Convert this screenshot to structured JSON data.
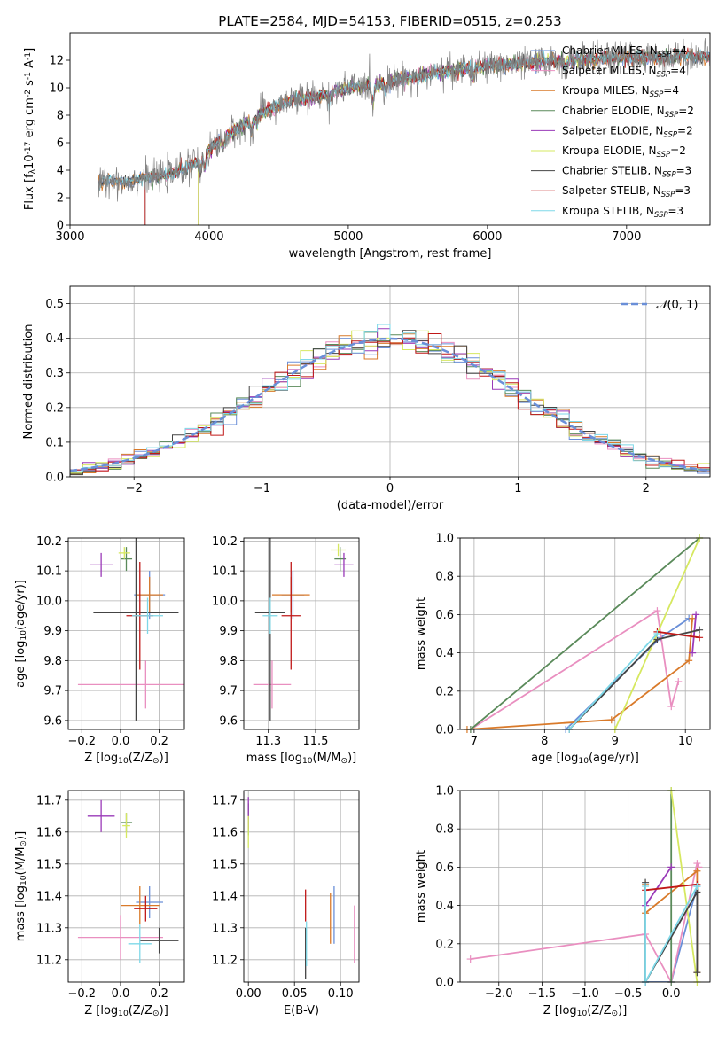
{
  "figure": {
    "title": "PLATE=2584, MJD=54153, FIBERID=0515, z=0.253"
  },
  "models": [
    {
      "name": "Chabrier MILES, N$_{SSP}$=4",
      "label_main": "Chabrier MILES, N",
      "label_sub": "SSP",
      "label_tail": "=4",
      "color": "#6a8fd8"
    },
    {
      "name": "Salpeter MILES, N$_{SSP}$=4",
      "label_main": "Salpeter MILES, N",
      "label_sub": "SSP",
      "label_tail": "=4",
      "color": "#e98fc0"
    },
    {
      "name": "Kroupa MILES, N$_{SSP}$=4",
      "label_main": "Kroupa MILES, N",
      "label_sub": "SSP",
      "label_tail": "=4",
      "color": "#d97a2a"
    },
    {
      "name": "Chabrier ELODIE, N$_{SSP}$=2",
      "label_main": "Chabrier ELODIE, N",
      "label_sub": "SSP",
      "label_tail": "=2",
      "color": "#5a8a5a"
    },
    {
      "name": "Salpeter ELODIE, N$_{SSP}$=2",
      "label_main": "Salpeter ELODIE, N",
      "label_sub": "SSP",
      "label_tail": "=2",
      "color": "#9a3ab8"
    },
    {
      "name": "Kroupa ELODIE, N$_{SSP}$=2",
      "label_main": "Kroupa ELODIE, N",
      "label_sub": "SSP",
      "label_tail": "=2",
      "color": "#d6e860"
    },
    {
      "name": "Chabrier STELIB, N$_{SSP}$=3",
      "label_main": "Chabrier STELIB, N",
      "label_sub": "SSP",
      "label_tail": "=3",
      "color": "#444444"
    },
    {
      "name": "Salpeter STELIB, N$_{SSP}$=3",
      "label_main": "Salpeter STELIB, N",
      "label_sub": "SSP",
      "label_tail": "=3",
      "color": "#c01818"
    },
    {
      "name": "Kroupa STELIB, N$_{SSP}$=3",
      "label_main": "Kroupa STELIB, N",
      "label_sub": "SSP",
      "label_tail": "=3",
      "color": "#7ed8e8"
    }
  ],
  "chart_data": [
    {
      "id": "spectrum",
      "type": "line",
      "xlabel": "wavelength [Angstrom, rest frame]",
      "ylabel": "Flux [f$_\\lambda$10$^{-17}$ erg cm$^{-2}$ s$^{-1}$ A$^{-1}$]",
      "xlim": [
        3000,
        7600
      ],
      "ylim": [
        0,
        14
      ],
      "xticks": [
        3000,
        4000,
        5000,
        6000,
        7000
      ],
      "yticks": [
        0,
        2,
        4,
        6,
        8,
        10,
        12
      ],
      "data_color": "#808080",
      "continuum_x": [
        3200,
        3300,
        3400,
        3500,
        3700,
        3900,
        4000,
        4200,
        4400,
        4600,
        4800,
        5000,
        5200,
        5400,
        5600,
        5800,
        6000,
        6200,
        6400,
        6600,
        6800,
        7000,
        7200,
        7400,
        7600
      ],
      "continuum_y": [
        3.0,
        3.3,
        3.1,
        3.4,
        3.6,
        4.5,
        5.5,
        7.0,
        8.3,
        9.1,
        9.4,
        10.0,
        10.2,
        10.7,
        11.0,
        11.3,
        11.6,
        11.7,
        11.9,
        12.0,
        12.1,
        12.2,
        12.2,
        12.3,
        12.3
      ],
      "legend": "upper right",
      "grid": false
    },
    {
      "id": "residuals",
      "type": "histogram",
      "xlabel": "(data-model)/error",
      "ylabel": "Normed distribution",
      "xlim": [
        -2.5,
        2.5
      ],
      "ylim": [
        0,
        0.55
      ],
      "xticks": [
        -2,
        -1,
        0,
        1,
        2
      ],
      "yticks": [
        0.0,
        0.1,
        0.2,
        0.3,
        0.4,
        0.5
      ],
      "bin_width": 0.1,
      "gaussian": {
        "label": "N(0,1)",
        "label_glyph": "𝒩",
        "label_tail": "(0, 1)",
        "color": "#6a8fd8",
        "mu": 0,
        "sigma": 1
      },
      "legend": "upper right",
      "grid": true
    },
    {
      "id": "age_vs_Z",
      "type": "scatter-errorbar",
      "xlabel": "Z [log$_{10}$(Z/Z$_\\odot$)]",
      "ylabel": "age  [log$_{10}$(age/yr)]",
      "xlim": [
        -0.27,
        0.33
      ],
      "ylim": [
        9.57,
        10.21
      ],
      "xticks": [
        -0.2,
        0.0,
        0.2
      ],
      "yticks": [
        9.6,
        9.7,
        9.8,
        9.9,
        10.0,
        10.1,
        10.2
      ],
      "points": [
        {
          "model": 0,
          "x": 0.15,
          "y": 10.02,
          "xerr": 0.08,
          "yerr": 0.08
        },
        {
          "model": 1,
          "x": 0.13,
          "y": 9.72,
          "xerr": 0.35,
          "yerr": 0.08
        },
        {
          "model": 2,
          "x": 0.15,
          "y": 10.02,
          "xerr": 0.07,
          "yerr": 0.06
        },
        {
          "model": 3,
          "x": 0.03,
          "y": 10.14,
          "xerr": 0.03,
          "yerr": 0.04
        },
        {
          "model": 4,
          "x": -0.1,
          "y": 10.12,
          "xerr": 0.06,
          "yerr": 0.04
        },
        {
          "model": 5,
          "x": 0.02,
          "y": 10.16,
          "xerr": 0.03,
          "yerr": 0.02
        },
        {
          "model": 6,
          "x": 0.08,
          "y": 9.96,
          "xerr": 0.22,
          "yerr": 0.36
        },
        {
          "model": 7,
          "x": 0.1,
          "y": 9.95,
          "xerr": 0.07,
          "yerr": 0.18
        },
        {
          "model": 8,
          "x": 0.14,
          "y": 9.95,
          "xerr": 0.08,
          "yerr": 0.06
        }
      ],
      "grid": true
    },
    {
      "id": "age_vs_mass",
      "type": "scatter-errorbar",
      "xlabel": "mass [log$_{10}$(M/M$_\\odot$)]",
      "ylabel": "",
      "xlim": [
        11.12,
        11.73
      ],
      "ylim": [
        9.57,
        10.21
      ],
      "xticks": [
        11.25,
        11.5
      ],
      "yticks": [
        9.6,
        9.7,
        9.8,
        9.9,
        10.0,
        10.1,
        10.2
      ],
      "points": [
        {
          "model": 0,
          "x": 11.38,
          "y": 10.02,
          "xerr": 0.06,
          "yerr": 0.08
        },
        {
          "model": 1,
          "x": 11.27,
          "y": 9.72,
          "xerr": 0.1,
          "yerr": 0.08
        },
        {
          "model": 2,
          "x": 11.37,
          "y": 10.02,
          "xerr": 0.1,
          "yerr": 0.06
        },
        {
          "model": 3,
          "x": 11.63,
          "y": 10.14,
          "xerr": 0.03,
          "yerr": 0.04
        },
        {
          "model": 4,
          "x": 11.65,
          "y": 10.12,
          "xerr": 0.05,
          "yerr": 0.04
        },
        {
          "model": 5,
          "x": 11.62,
          "y": 10.17,
          "xerr": 0.04,
          "yerr": 0.02
        },
        {
          "model": 6,
          "x": 11.26,
          "y": 9.96,
          "xerr": 0.08,
          "yerr": 0.36
        },
        {
          "model": 7,
          "x": 11.37,
          "y": 9.95,
          "xerr": 0.05,
          "yerr": 0.18
        },
        {
          "model": 8,
          "x": 11.26,
          "y": 9.95,
          "xerr": 0.04,
          "yerr": 0.06
        }
      ],
      "grid": true
    },
    {
      "id": "massweight_vs_age",
      "type": "line",
      "xlabel": "age  [log$_{10}$(age/yr)]",
      "ylabel": "mass weight",
      "xlim": [
        6.8,
        10.35
      ],
      "ylim": [
        0,
        1
      ],
      "xticks": [
        7,
        8,
        9,
        10
      ],
      "yticks": [
        0.0,
        0.2,
        0.4,
        0.6,
        0.8,
        1.0
      ],
      "series": [
        {
          "model": 0,
          "x": [
            8.3,
            9.65,
            10.05
          ],
          "y": [
            0.0,
            0.48,
            0.58
          ]
        },
        {
          "model": 1,
          "x": [
            6.95,
            9.6,
            9.8,
            9.9
          ],
          "y": [
            0.0,
            0.62,
            0.12,
            0.25
          ]
        },
        {
          "model": 2,
          "x": [
            6.9,
            8.95,
            10.05,
            10.1
          ],
          "y": [
            0.0,
            0.05,
            0.36,
            0.58
          ]
        },
        {
          "model": 3,
          "x": [
            6.95,
            10.2
          ],
          "y": [
            0.0,
            1.0
          ]
        },
        {
          "model": 4,
          "x": [
            10.1,
            10.15
          ],
          "y": [
            0.4,
            0.6
          ]
        },
        {
          "model": 5,
          "x": [
            9.0,
            10.2
          ],
          "y": [
            0.0,
            1.0
          ]
        },
        {
          "model": 6,
          "x": [
            8.35,
            9.6,
            10.2
          ],
          "y": [
            0.0,
            0.47,
            0.52
          ]
        },
        {
          "model": 7,
          "x": [
            9.6,
            10.2
          ],
          "y": [
            0.51,
            0.48
          ]
        },
        {
          "model": 8,
          "x": [
            8.35,
            9.6
          ],
          "y": [
            0.0,
            0.5
          ]
        }
      ],
      "grid": true
    },
    {
      "id": "mass_vs_Z",
      "type": "scatter-errorbar",
      "xlabel": "Z [log$_{10}$(Z/Z$_\\odot$)]",
      "ylabel": "mass [log$_{10}$(M/M$_\\odot$)]",
      "xlim": [
        -0.27,
        0.33
      ],
      "ylim": [
        11.13,
        11.73
      ],
      "xticks": [
        -0.2,
        0.0,
        0.2
      ],
      "yticks": [
        11.2,
        11.3,
        11.4,
        11.5,
        11.6,
        11.7
      ],
      "points": [
        {
          "model": 0,
          "x": 0.15,
          "y": 11.38,
          "xerr": 0.07,
          "yerr": 0.05
        },
        {
          "model": 1,
          "x": 0.0,
          "y": 11.27,
          "xerr": 0.22,
          "yerr": 0.07
        },
        {
          "model": 2,
          "x": 0.1,
          "y": 11.37,
          "xerr": 0.1,
          "yerr": 0.06
        },
        {
          "model": 3,
          "x": 0.03,
          "y": 11.63,
          "xerr": 0.03,
          "yerr": 0.03
        },
        {
          "model": 4,
          "x": -0.1,
          "y": 11.65,
          "xerr": 0.07,
          "yerr": 0.05
        },
        {
          "model": 5,
          "x": 0.03,
          "y": 11.62,
          "xerr": 0.02,
          "yerr": 0.04
        },
        {
          "model": 6,
          "x": 0.2,
          "y": 11.26,
          "xerr": 0.1,
          "yerr": 0.04
        },
        {
          "model": 7,
          "x": 0.13,
          "y": 11.36,
          "xerr": 0.06,
          "yerr": 0.04
        },
        {
          "model": 8,
          "x": 0.1,
          "y": 11.25,
          "xerr": 0.06,
          "yerr": 0.06
        }
      ],
      "grid": true
    },
    {
      "id": "mass_vs_ebv",
      "type": "scatter-errorbar",
      "xlabel": "E(B-V)",
      "ylabel": "",
      "xlim": [
        -0.005,
        0.12
      ],
      "ylim": [
        11.13,
        11.73
      ],
      "xticks": [
        0.0,
        0.05,
        0.1
      ],
      "yticks": [
        11.2,
        11.3,
        11.4,
        11.5,
        11.6,
        11.7
      ],
      "points": [
        {
          "model": 0,
          "x": 0.093,
          "y": 11.34,
          "xerr": 0.0,
          "yerr": 0.09
        },
        {
          "model": 1,
          "x": 0.115,
          "y": 11.28,
          "xerr": 0.0,
          "yerr": 0.09
        },
        {
          "model": 2,
          "x": 0.089,
          "y": 11.33,
          "xerr": 0.0,
          "yerr": 0.08
        },
        {
          "model": 3,
          "x": 0.0,
          "y": 11.64,
          "xerr": 0.0,
          "yerr": 0.05
        },
        {
          "model": 4,
          "x": 0.0,
          "y": 11.66,
          "xerr": 0.0,
          "yerr": 0.05
        },
        {
          "model": 5,
          "x": 0.0,
          "y": 11.6,
          "xerr": 0.0,
          "yerr": 0.05
        },
        {
          "model": 6,
          "x": 0.062,
          "y": 11.22,
          "xerr": 0.0,
          "yerr": 0.08
        },
        {
          "model": 7,
          "x": 0.062,
          "y": 11.37,
          "xerr": 0.0,
          "yerr": 0.05
        },
        {
          "model": 8,
          "x": 0.063,
          "y": 11.25,
          "xerr": 0.0,
          "yerr": 0.07
        }
      ],
      "grid": true
    },
    {
      "id": "massweight_vs_Z",
      "type": "line",
      "xlabel": "Z [log$_{10}$(Z/Z$_\\odot$)]",
      "ylabel": "mass weight",
      "xlim": [
        -2.45,
        0.45
      ],
      "ylim": [
        0,
        1
      ],
      "xticks": [
        -2.0,
        -1.5,
        -1.0,
        -0.5,
        0.0
      ],
      "yticks": [
        0.0,
        0.2,
        0.4,
        0.6,
        0.8,
        1.0
      ],
      "series": [
        {
          "model": 0,
          "x": [
            -0.3,
            0.0,
            0.3
          ],
          "y": [
            0.0,
            0.0,
            0.5
          ]
        },
        {
          "model": 1,
          "x": [
            -2.33,
            -0.3,
            0.0,
            0.3,
            0.32
          ],
          "y": [
            0.12,
            0.25,
            0.0,
            0.62,
            0.6
          ]
        },
        {
          "model": 2,
          "x": [
            -0.3,
            -0.3,
            0.3,
            0.3
          ],
          "y": [
            0.51,
            0.36,
            0.58,
            0.05
          ]
        },
        {
          "model": 3,
          "x": [
            0.0,
            0.0
          ],
          "y": [
            0.0,
            1.0
          ]
        },
        {
          "model": 4,
          "x": [
            -0.3,
            0.0
          ],
          "y": [
            0.4,
            0.6
          ]
        },
        {
          "model": 5,
          "x": [
            0.0,
            0.3
          ],
          "y": [
            1.0,
            0.0
          ]
        },
        {
          "model": 6,
          "x": [
            -0.3,
            -0.3,
            0.3,
            0.3
          ],
          "y": [
            0.52,
            0.0,
            0.47,
            0.05
          ]
        },
        {
          "model": 7,
          "x": [
            -0.3,
            0.3
          ],
          "y": [
            0.48,
            0.51
          ]
        },
        {
          "model": 8,
          "x": [
            -0.3,
            -0.3,
            0.3
          ],
          "y": [
            0.5,
            0.0,
            0.5
          ]
        }
      ],
      "grid": true
    }
  ]
}
